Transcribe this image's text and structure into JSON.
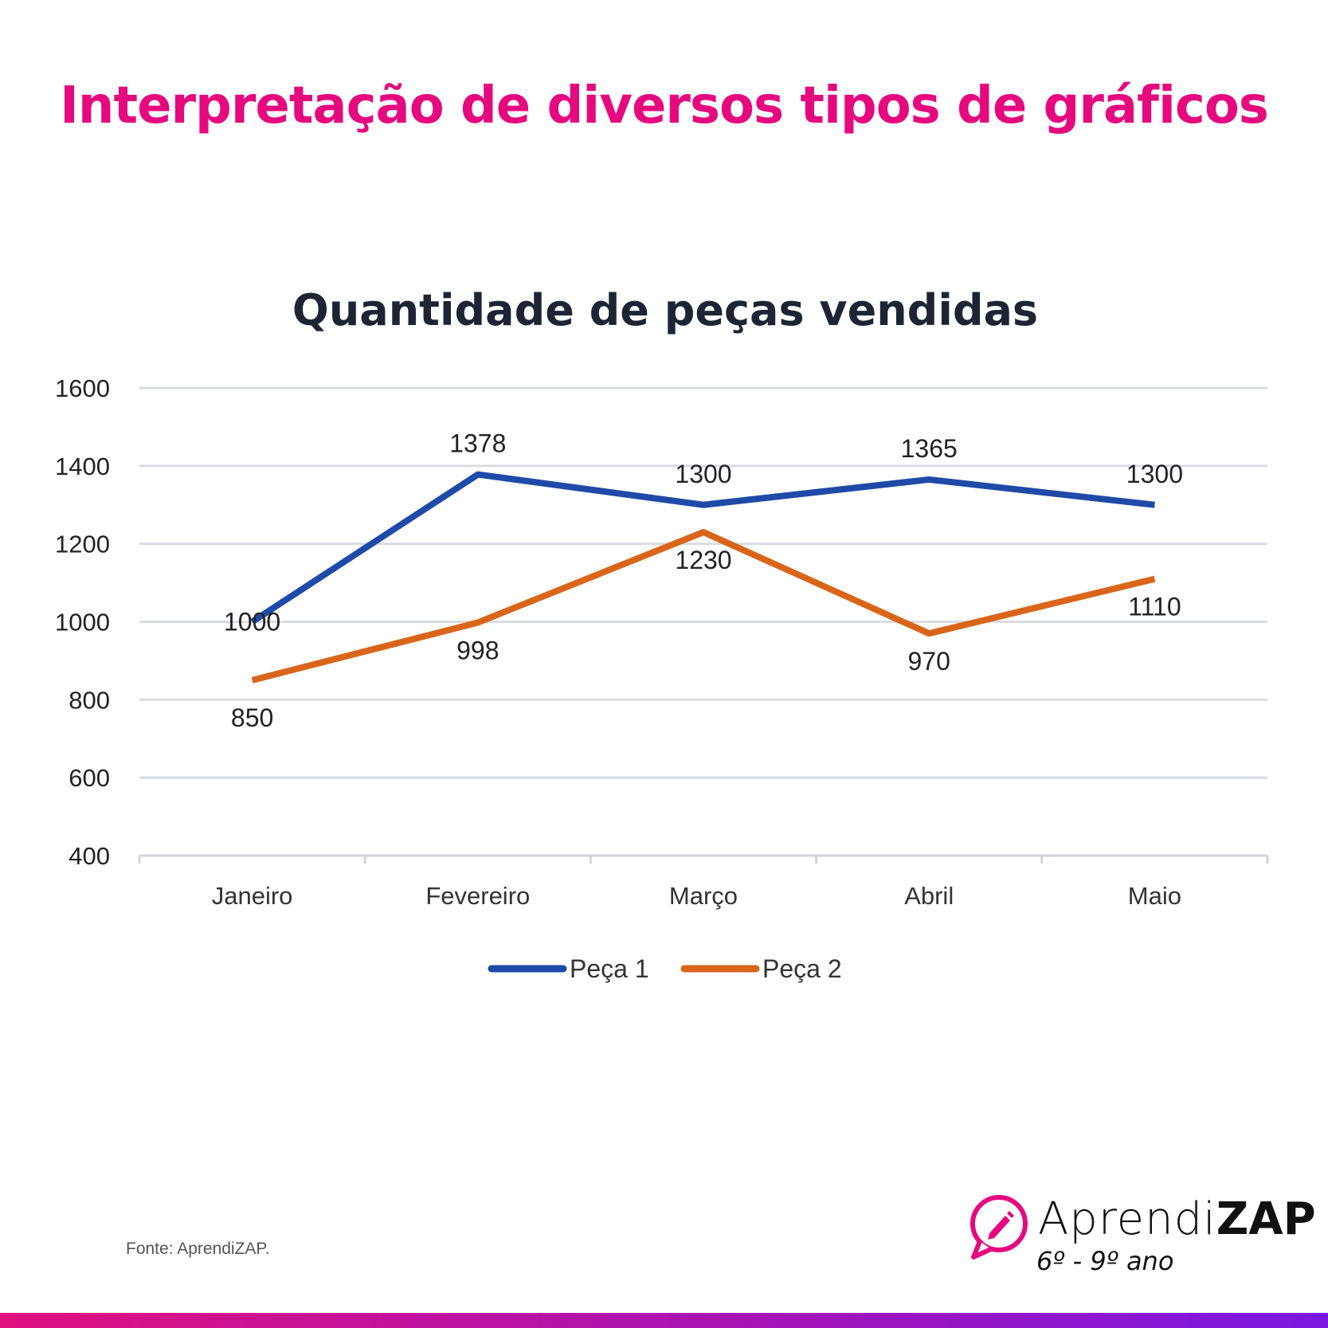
{
  "page_title": "Interpretação de diversos tipos de gráficos",
  "source": "Fonte: AprendiZAP.",
  "logo": {
    "name_light": "Aprendi",
    "name_bold": "ZAP",
    "subtitle": "6º - 9º ano",
    "icon": "pencil-speech-bubble-icon"
  },
  "colors": {
    "title": "#e5097f",
    "bar_start": "#e0107f",
    "bar_end": "#7a18e0",
    "peca1": "#1f4aa8",
    "peca2": "#d9651a"
  },
  "chart_data": {
    "type": "line",
    "title": "Quantidade de peças vendidas",
    "categories": [
      "Janeiro",
      "Fevereiro",
      "Março",
      "Abril",
      "Maio"
    ],
    "series": [
      {
        "name": "Peça 1",
        "values": [
          1000,
          1378,
          1300,
          1365,
          1300
        ],
        "labels": [
          "1000",
          "1378",
          "1300",
          "1365",
          "1300"
        ]
      },
      {
        "name": "Peça 2",
        "values": [
          850,
          998,
          1230,
          970,
          1110
        ],
        "labels": [
          "850",
          "998",
          "1230",
          "970",
          "1110"
        ]
      }
    ],
    "ylim": [
      400,
      1600
    ],
    "yticks": [
      "400",
      "600",
      "800",
      "1000",
      "1200",
      "1400",
      "1600"
    ],
    "grid": true,
    "legend": "bottom"
  }
}
